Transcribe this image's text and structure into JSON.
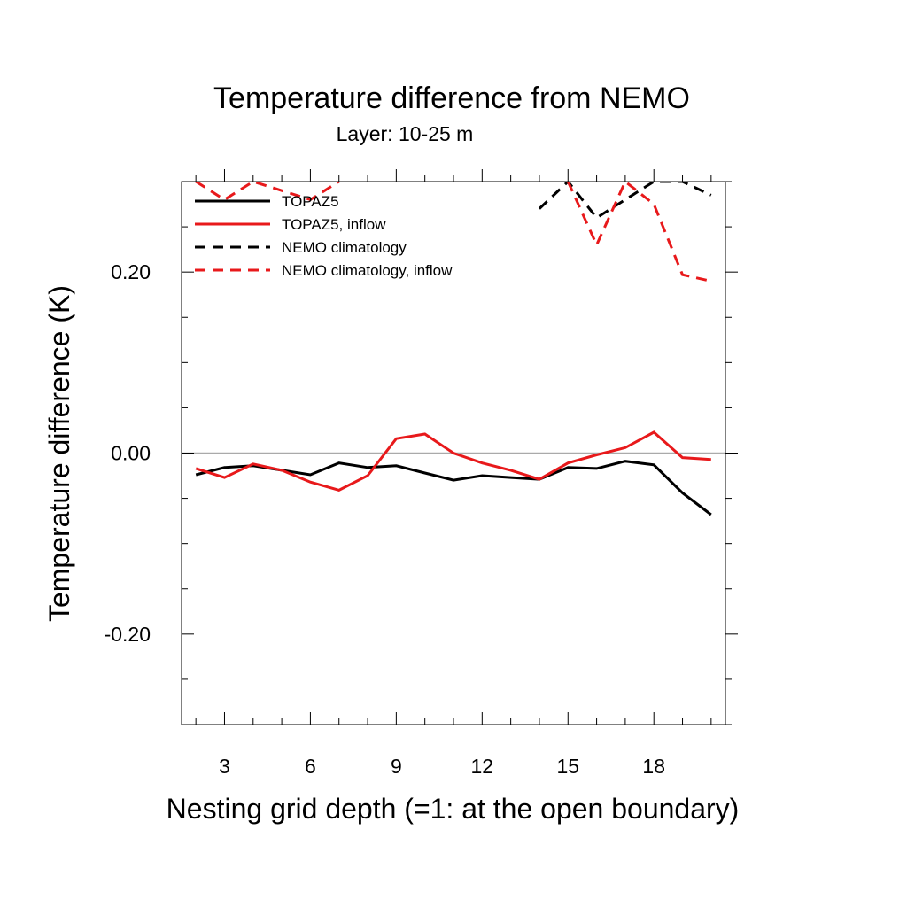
{
  "chart_data": {
    "type": "line",
    "title": "Temperature difference from NEMO",
    "subtitle": "Layer: 10-25 m",
    "xlabel": "Nesting grid depth (=1: at the open boundary)",
    "ylabel": "Temperature difference (K)",
    "xlim": [
      1.5,
      20.5
    ],
    "ylim": [
      -0.3,
      0.3
    ],
    "xticks": [
      3,
      6,
      9,
      12,
      15,
      18
    ],
    "xtick_labels": [
      "3",
      "6",
      "9",
      "12",
      "15",
      "18"
    ],
    "yticks": [
      -0.2,
      0.0,
      0.2
    ],
    "ytick_labels": [
      "-0.20",
      "0.00",
      "0.20"
    ],
    "zero_line": true,
    "grid": false,
    "legend_position": "top-left",
    "x": [
      2,
      3,
      4,
      5,
      6,
      7,
      8,
      9,
      10,
      11,
      12,
      13,
      14,
      15,
      16,
      17,
      18,
      19,
      20
    ],
    "series": [
      {
        "name": "TOPAZ5",
        "color": "#000000",
        "dash": "solid",
        "values": [
          -0.024,
          -0.016,
          -0.014,
          -0.019,
          -0.024,
          -0.011,
          -0.016,
          -0.014,
          -0.022,
          -0.03,
          -0.025,
          -0.027,
          -0.029,
          -0.016,
          -0.017,
          -0.009,
          -0.013,
          -0.044,
          -0.068
        ]
      },
      {
        "name": "TOPAZ5, inflow",
        "color": "#e8191b",
        "dash": "solid",
        "values": [
          -0.017,
          -0.027,
          -0.012,
          -0.019,
          -0.032,
          -0.041,
          -0.025,
          0.016,
          0.021,
          0.0,
          -0.011,
          -0.019,
          -0.029,
          -0.011,
          -0.002,
          0.006,
          0.023,
          -0.005,
          -0.007
        ]
      },
      {
        "name": "NEMO climatology",
        "color": "#000000",
        "dash": "dashed",
        "values": [
          null,
          null,
          null,
          null,
          null,
          null,
          null,
          null,
          null,
          null,
          null,
          null,
          0.27,
          0.3,
          0.26,
          0.28,
          0.3,
          0.3,
          0.285
        ]
      },
      {
        "name": "NEMO climatology, inflow",
        "color": "#e8191b",
        "dash": "dashed",
        "values": [
          0.3,
          0.28,
          0.3,
          0.29,
          0.28,
          0.3,
          null,
          null,
          null,
          null,
          null,
          null,
          null,
          0.3,
          0.23,
          0.3,
          0.275,
          0.197,
          0.19
        ]
      }
    ]
  }
}
